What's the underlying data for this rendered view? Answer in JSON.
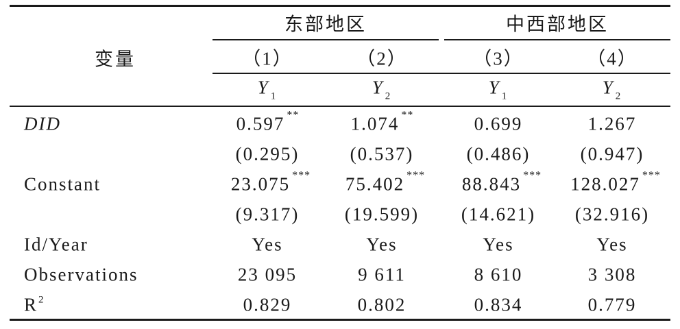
{
  "table": {
    "stub_header": "变量",
    "groups": [
      "东部地区",
      "中西部地区"
    ],
    "columns": [
      "（1）",
      "（2）",
      "（3）",
      "（4）"
    ],
    "dependent": [
      {
        "symbol": "Y",
        "sub": "1"
      },
      {
        "symbol": "Y",
        "sub": "2"
      },
      {
        "symbol": "Y",
        "sub": "1"
      },
      {
        "symbol": "Y",
        "sub": "2"
      }
    ],
    "rows": [
      {
        "label": {
          "text": "DID"
        },
        "italic": true,
        "cells": [
          {
            "value": "0.597",
            "stars": "**"
          },
          {
            "value": "1.074",
            "stars": "**"
          },
          {
            "value": "0.699"
          },
          {
            "value": "1.267"
          }
        ]
      },
      {
        "cells": [
          {
            "value": "(0.295)"
          },
          {
            "value": "(0.537)"
          },
          {
            "value": "(0.486)"
          },
          {
            "value": "(0.947)"
          }
        ]
      },
      {
        "label": {
          "text": "Constant"
        },
        "cells": [
          {
            "value": "23.075",
            "stars": "***"
          },
          {
            "value": "75.402",
            "stars": "***"
          },
          {
            "value": "88.843",
            "stars": "***"
          },
          {
            "value": "128.027",
            "stars": "***"
          }
        ]
      },
      {
        "cells": [
          {
            "value": "(9.317)"
          },
          {
            "value": "(19.599)"
          },
          {
            "value": "(14.621)"
          },
          {
            "value": "(32.916)"
          }
        ]
      },
      {
        "label": {
          "text": "Id/Year"
        },
        "cells": [
          {
            "value": "Yes"
          },
          {
            "value": "Yes"
          },
          {
            "value": "Yes"
          },
          {
            "value": "Yes"
          }
        ]
      },
      {
        "label": {
          "text": "Observations"
        },
        "cells": [
          {
            "value": "23 095"
          },
          {
            "value": "9 611"
          },
          {
            "value": "8 610"
          },
          {
            "value": "3 308"
          }
        ]
      },
      {
        "label": {
          "text": "R",
          "sup": "2"
        },
        "cells": [
          {
            "value": "0.829"
          },
          {
            "value": "0.802"
          },
          {
            "value": "0.834"
          },
          {
            "value": "0.779"
          }
        ]
      }
    ]
  }
}
